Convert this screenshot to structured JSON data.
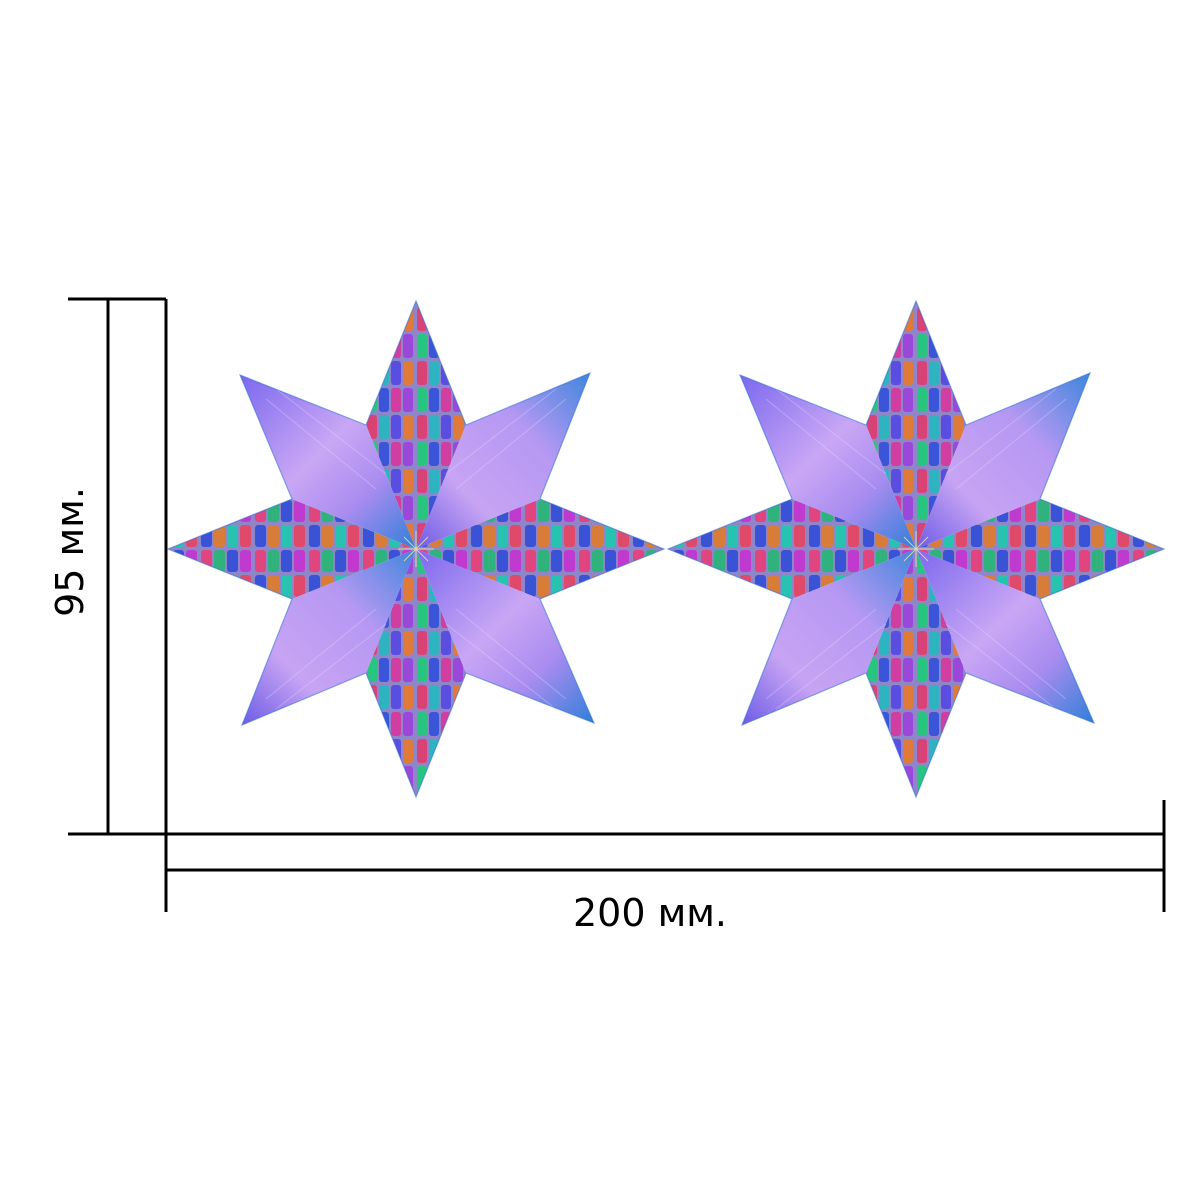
{
  "dimensions": {
    "height_label": "95 мм.",
    "width_label": "200 мм."
  },
  "stars": {
    "count": 2,
    "points": 8,
    "colors": {
      "accent_violet": "#9a7af0",
      "accent_lilac": "#c5a5f5",
      "accent_blue": "#2a6bd6",
      "tile_green": "#23c37a",
      "tile_magenta": "#d23f9e",
      "tile_blue": "#3a4fd6",
      "tile_orange": "#e07a3a"
    }
  }
}
